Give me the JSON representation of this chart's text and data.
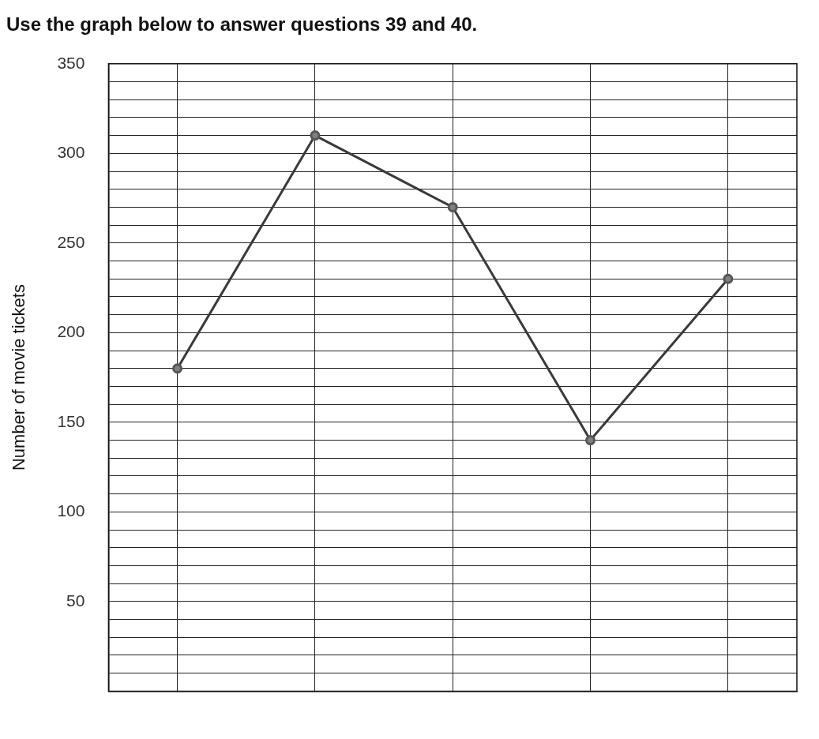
{
  "chart_data": {
    "type": "line",
    "title": "Use the graph below to answer questions 39 and 40.",
    "ylabel": "Number of movie tickets",
    "categories": [
      null,
      null,
      null,
      null,
      null
    ],
    "series": [
      {
        "color": "#3a3a3a",
        "values": [
          180,
          310,
          270,
          140,
          230
        ]
      }
    ],
    "ylim": [
      0,
      350
    ],
    "yticks": [
      {
        "value": 0,
        "label": null
      },
      {
        "value": 10,
        "label": null
      },
      {
        "value": 20,
        "label": null
      },
      {
        "value": 30,
        "label": null
      },
      {
        "value": 40,
        "label": null
      },
      50,
      {
        "value": 60,
        "label": null
      },
      {
        "value": 70,
        "label": null
      },
      {
        "value": 80,
        "label": null
      },
      {
        "value": 90,
        "label": null
      },
      100,
      {
        "value": 110,
        "label": null
      },
      {
        "value": 120,
        "label": null
      },
      {
        "value": 130,
        "label": null
      },
      {
        "value": 140,
        "label": null
      },
      150,
      {
        "value": 160,
        "label": null
      },
      {
        "value": 170,
        "label": null
      },
      {
        "value": 180,
        "label": null
      },
      {
        "value": 190,
        "label": null
      },
      200,
      {
        "value": 210,
        "label": null
      },
      {
        "value": 220,
        "label": null
      },
      {
        "value": 230,
        "label": null
      },
      {
        "value": 240,
        "label": null
      },
      250,
      {
        "value": 260,
        "label": null
      },
      {
        "value": 270,
        "label": null
      },
      {
        "value": 280,
        "label": null
      },
      {
        "value": 290,
        "label": null
      },
      300,
      {
        "value": 310,
        "label": null
      },
      {
        "value": 320,
        "label": null
      },
      {
        "value": 330,
        "label": null
      },
      {
        "value": 340,
        "label": null
      },
      350
    ],
    "grid": true,
    "legend": false,
    "marker": "circle",
    "line_style": "solid"
  }
}
